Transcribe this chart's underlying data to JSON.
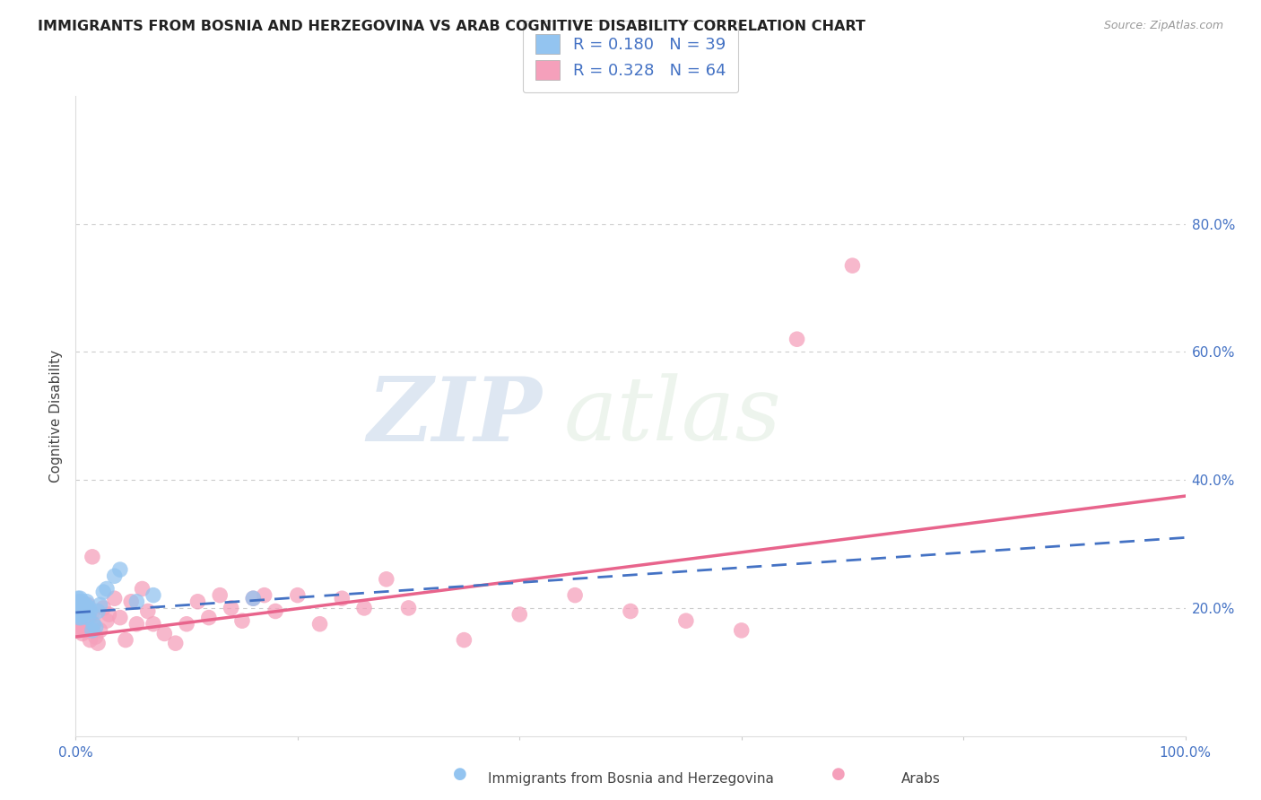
{
  "title": "IMMIGRANTS FROM BOSNIA AND HERZEGOVINA VS ARAB COGNITIVE DISABILITY CORRELATION CHART",
  "source": "Source: ZipAtlas.com",
  "ylabel": "Cognitive Disability",
  "xlim": [
    0.0,
    1.0
  ],
  "ylim": [
    0.0,
    1.0
  ],
  "xtick_positions": [
    0.0,
    1.0
  ],
  "xtick_labels": [
    "0.0%",
    "100.0%"
  ],
  "ytick_values_right": [
    0.2,
    0.4,
    0.6,
    0.8
  ],
  "ytick_labels_right": [
    "20.0%",
    "40.0%",
    "60.0%",
    "80.0%"
  ],
  "blue_color": "#93c4f0",
  "pink_color": "#f5a0bb",
  "blue_line_color": "#4472c4",
  "pink_line_color": "#e8648c",
  "R_blue": 0.18,
  "N_blue": 39,
  "R_pink": 0.328,
  "N_pink": 64,
  "legend_label_blue": "Immigrants from Bosnia and Herzegovina",
  "legend_label_pink": "Arabs",
  "watermark_zip": "ZIP",
  "watermark_atlas": "atlas",
  "blue_scatter_x": [
    0.001,
    0.001,
    0.002,
    0.002,
    0.002,
    0.003,
    0.003,
    0.003,
    0.003,
    0.004,
    0.004,
    0.004,
    0.005,
    0.005,
    0.005,
    0.006,
    0.006,
    0.007,
    0.007,
    0.008,
    0.008,
    0.009,
    0.01,
    0.01,
    0.011,
    0.012,
    0.013,
    0.015,
    0.016,
    0.018,
    0.02,
    0.022,
    0.025,
    0.028,
    0.035,
    0.04,
    0.055,
    0.07,
    0.16
  ],
  "blue_scatter_y": [
    0.205,
    0.195,
    0.215,
    0.2,
    0.19,
    0.21,
    0.2,
    0.195,
    0.185,
    0.205,
    0.195,
    0.215,
    0.2,
    0.19,
    0.185,
    0.21,
    0.195,
    0.205,
    0.19,
    0.2,
    0.195,
    0.205,
    0.21,
    0.195,
    0.185,
    0.2,
    0.195,
    0.165,
    0.175,
    0.17,
    0.195,
    0.205,
    0.225,
    0.23,
    0.25,
    0.26,
    0.21,
    0.22,
    0.215
  ],
  "pink_scatter_x": [
    0.001,
    0.001,
    0.002,
    0.002,
    0.003,
    0.003,
    0.003,
    0.004,
    0.004,
    0.005,
    0.005,
    0.006,
    0.006,
    0.007,
    0.007,
    0.008,
    0.009,
    0.01,
    0.01,
    0.011,
    0.012,
    0.013,
    0.015,
    0.015,
    0.016,
    0.018,
    0.02,
    0.022,
    0.025,
    0.028,
    0.03,
    0.035,
    0.04,
    0.045,
    0.05,
    0.055,
    0.06,
    0.065,
    0.07,
    0.08,
    0.09,
    0.1,
    0.11,
    0.12,
    0.13,
    0.14,
    0.15,
    0.16,
    0.17,
    0.18,
    0.2,
    0.22,
    0.24,
    0.26,
    0.28,
    0.3,
    0.35,
    0.4,
    0.45,
    0.5,
    0.55,
    0.6,
    0.65,
    0.7
  ],
  "pink_scatter_y": [
    0.19,
    0.17,
    0.2,
    0.185,
    0.195,
    0.175,
    0.21,
    0.185,
    0.165,
    0.2,
    0.175,
    0.195,
    0.16,
    0.185,
    0.17,
    0.195,
    0.175,
    0.19,
    0.165,
    0.205,
    0.185,
    0.15,
    0.19,
    0.28,
    0.175,
    0.155,
    0.145,
    0.165,
    0.2,
    0.18,
    0.19,
    0.215,
    0.185,
    0.15,
    0.21,
    0.175,
    0.23,
    0.195,
    0.175,
    0.16,
    0.145,
    0.175,
    0.21,
    0.185,
    0.22,
    0.2,
    0.18,
    0.215,
    0.22,
    0.195,
    0.22,
    0.175,
    0.215,
    0.2,
    0.245,
    0.2,
    0.15,
    0.19,
    0.22,
    0.195,
    0.18,
    0.165,
    0.62,
    0.735
  ],
  "pink_trend_start_x": 0.0,
  "pink_trend_start_y": 0.155,
  "pink_trend_end_x": 1.0,
  "pink_trend_end_y": 0.375,
  "blue_trend_start_x": 0.0,
  "blue_trend_start_y": 0.193,
  "blue_trend_end_x": 1.0,
  "blue_trend_end_y": 0.31
}
